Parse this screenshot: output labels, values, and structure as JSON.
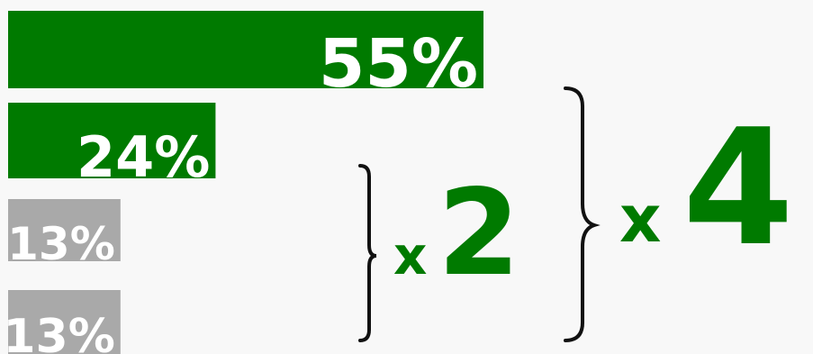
{
  "chart_data": {
    "type": "bar",
    "orientation": "horizontal",
    "categories": [
      "",
      "",
      "",
      ""
    ],
    "values": [
      55,
      24,
      13,
      13
    ],
    "labels": [
      "55%",
      "24%",
      "13%",
      "13%"
    ],
    "xlim": [
      0,
      55
    ],
    "colors": [
      "#007a00",
      "#007a00",
      "#a9a9a9",
      "#a9a9a9"
    ],
    "grid": false,
    "legend": "none",
    "annotations": [
      {
        "prefix": "x",
        "value": "2",
        "compares": [
          1,
          2
        ],
        "color": "#007a00"
      },
      {
        "prefix": "x",
        "value": "4",
        "compares": [
          0,
          2
        ],
        "color": "#007a00"
      }
    ]
  }
}
